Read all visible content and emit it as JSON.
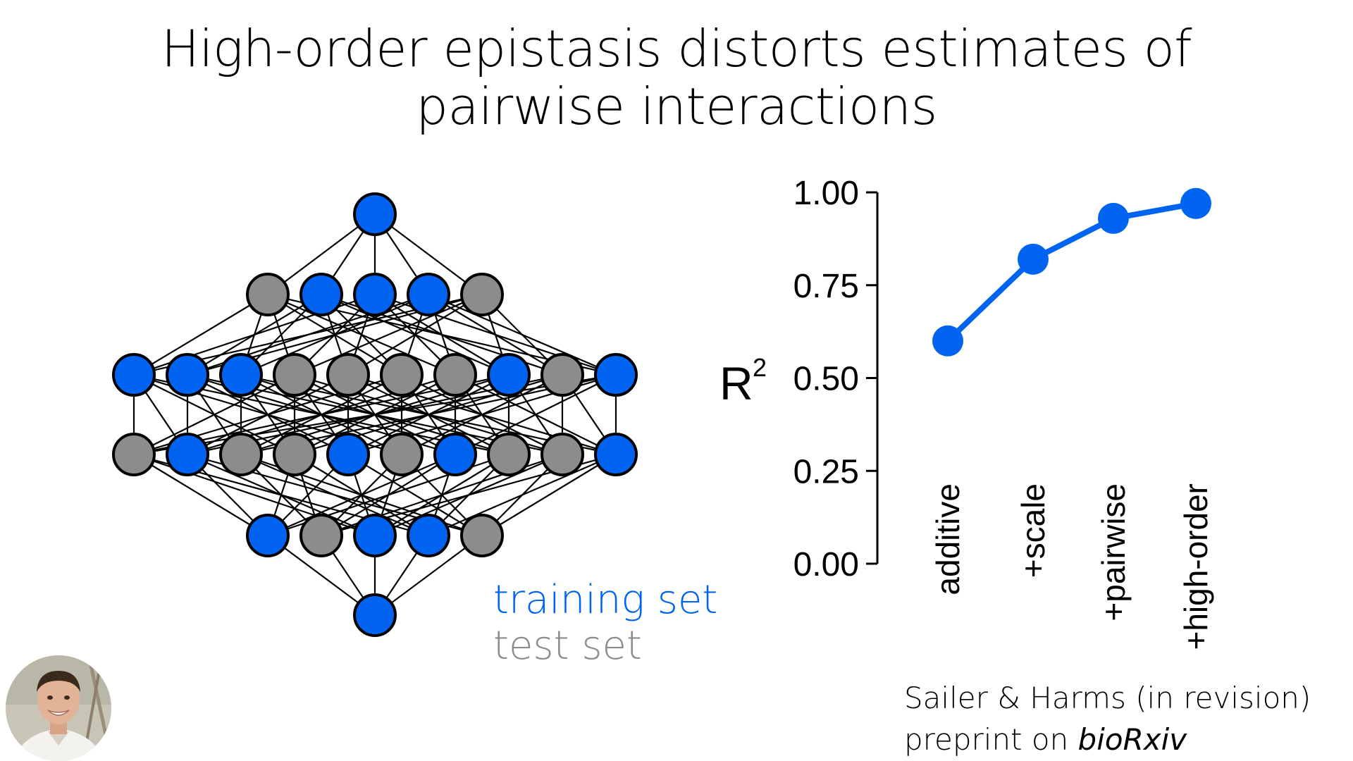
{
  "title_line1": "High-order epistasis distorts estimates of",
  "title_line2": "pairwise interactions",
  "legend": {
    "training_label": "training set",
    "test_label": "test set",
    "training_color": "#0064f0",
    "test_color": "#8c8c8c"
  },
  "network": {
    "layers": [
      [
        "training"
      ],
      [
        "test",
        "training",
        "training",
        "training",
        "test"
      ],
      [
        "training",
        "training",
        "training",
        "test",
        "test",
        "test",
        "test",
        "training",
        "test",
        "training"
      ],
      [
        "test",
        "training",
        "test",
        "test",
        "training",
        "test",
        "training",
        "test",
        "test",
        "training"
      ],
      [
        "training",
        "test",
        "training",
        "training",
        "test"
      ],
      [
        "training"
      ]
    ]
  },
  "chart_data": {
    "type": "line",
    "categories": [
      "additive",
      "+scale",
      "+pairwise",
      "+high-order"
    ],
    "values": [
      0.6,
      0.82,
      0.93,
      0.97
    ],
    "ylabel_base": "R",
    "ylabel_sup": "2",
    "ylim": [
      0,
      1
    ],
    "yticks": [
      "0.00",
      "0.25",
      "0.50",
      "0.75",
      "1.00"
    ],
    "line_color": "#0064f0",
    "grid": false
  },
  "citation": {
    "line1": "Sailer & Harms (in revision)",
    "line2_prefix": "preprint on ",
    "line2_italic": "bioRxiv"
  },
  "avatar": {
    "icon": "presenter-photo"
  }
}
